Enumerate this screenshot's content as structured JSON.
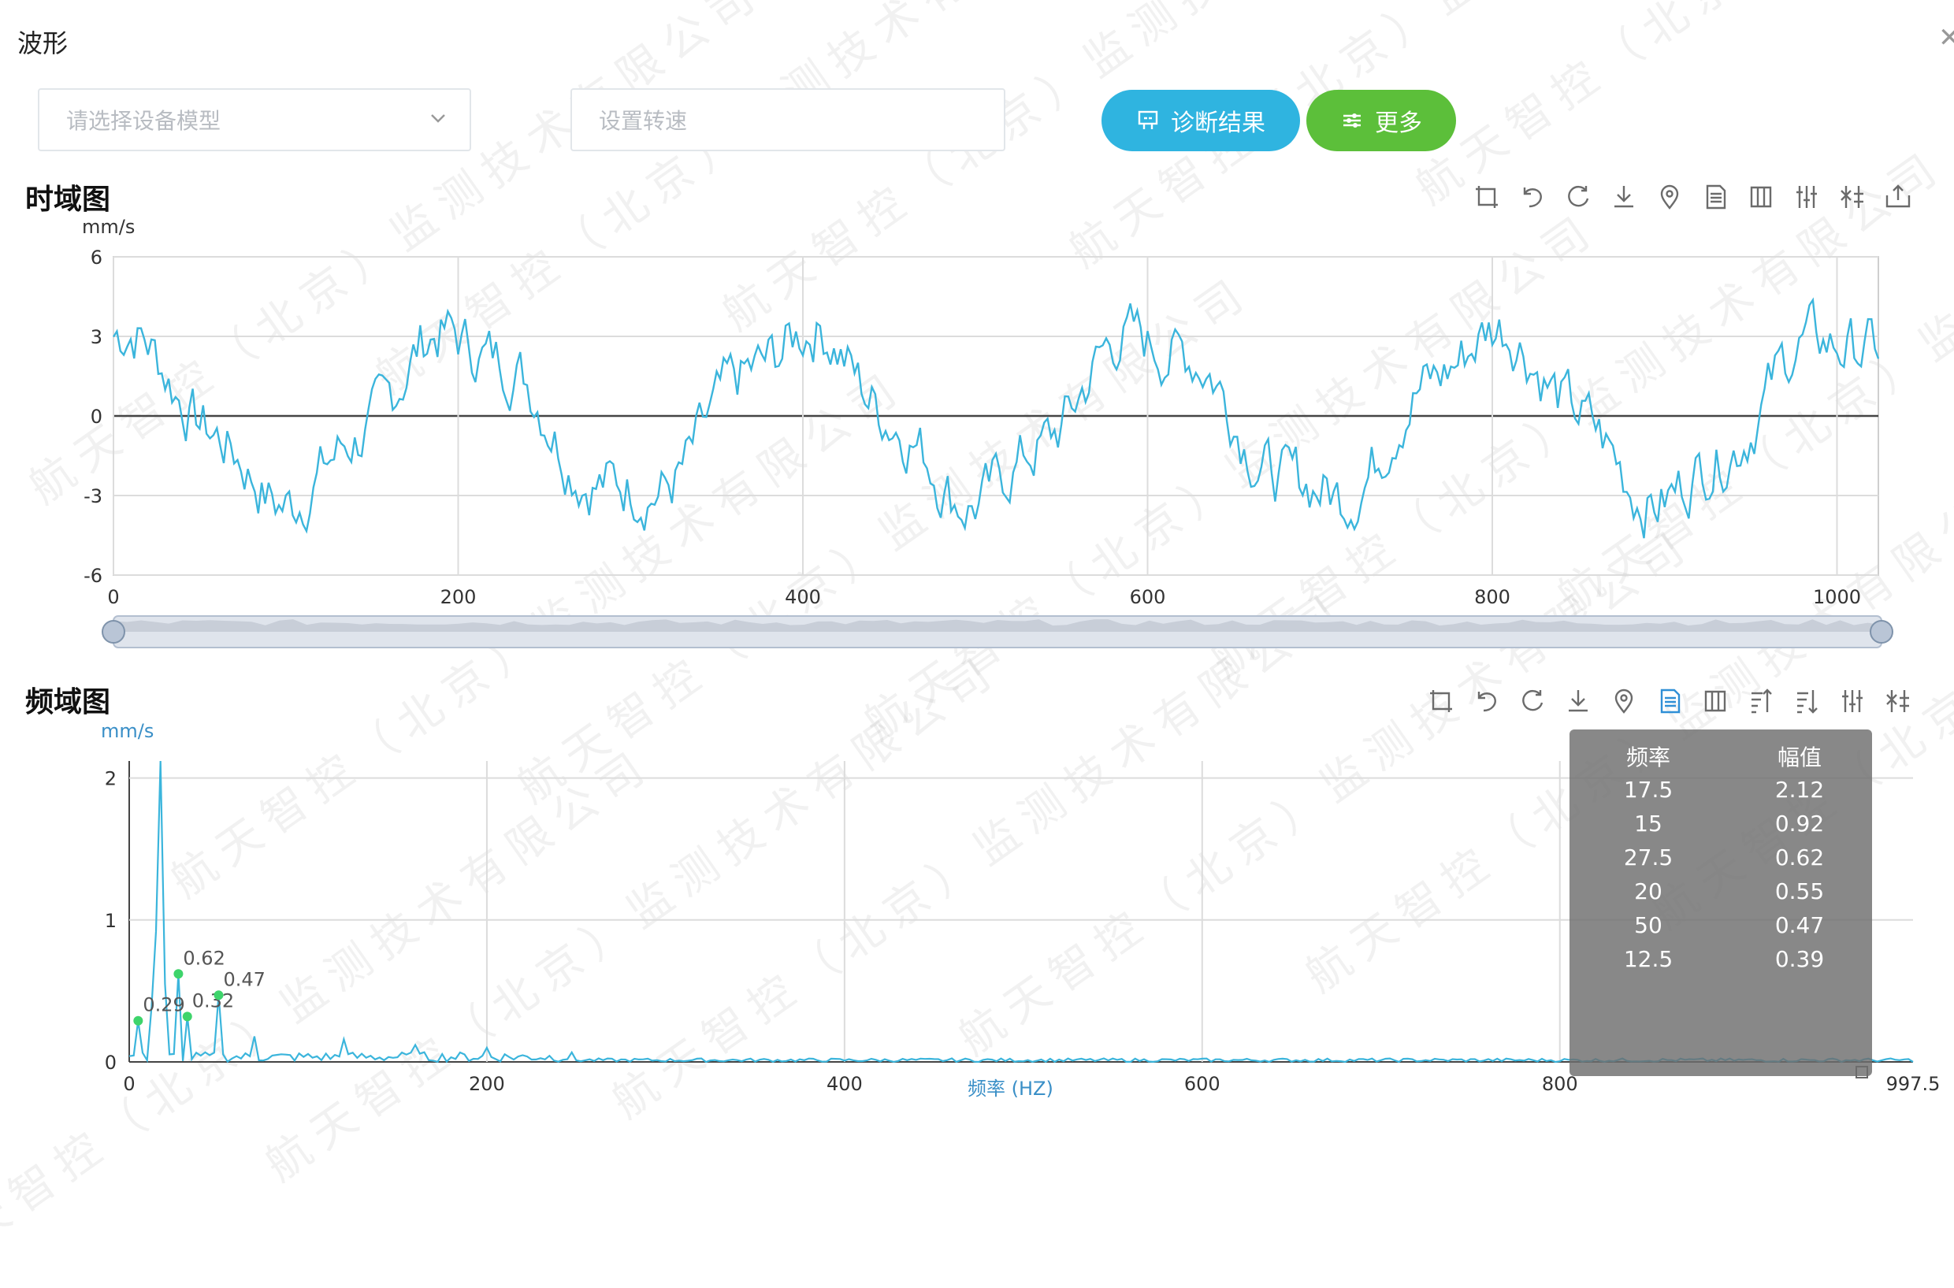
{
  "window": {
    "title": "波形",
    "close_icon": "close-icon"
  },
  "toolbar_form": {
    "model_placeholder": "请选择设备模型",
    "speed_placeholder": "设置转速",
    "diag_label": "诊断结果",
    "more_label": "更多"
  },
  "time_chart": {
    "title": "时域图",
    "y_unit": "mm/s",
    "tools": [
      "crop-icon",
      "undo-icon",
      "refresh-icon",
      "download-icon",
      "marker-icon",
      "data-view-icon",
      "columns-icon",
      "sliders-icon",
      "compare-icon",
      "export-icon"
    ]
  },
  "freq_chart": {
    "title": "频域图",
    "y_unit": "mm/s",
    "x_label": "频率 (HZ)",
    "tools": [
      "crop-icon",
      "undo-icon",
      "refresh-icon",
      "download-icon",
      "marker-icon",
      "data-view-icon",
      "columns-icon",
      "sort-asc-icon",
      "sort-desc-icon",
      "sliders-icon",
      "compare-icon"
    ]
  },
  "peak_table": {
    "headers": [
      "频率",
      "幅值"
    ],
    "rows": [
      [
        "17.5",
        "2.12"
      ],
      [
        "15",
        "0.92"
      ],
      [
        "27.5",
        "0.62"
      ],
      [
        "20",
        "0.55"
      ],
      [
        "50",
        "0.47"
      ],
      [
        "12.5",
        "0.39"
      ]
    ]
  },
  "watermark": "航天智控（北京）监测技术有限公司",
  "colors": {
    "line": "#3bb5dc",
    "green": "#3ed46b",
    "diag": "#2fb4e0",
    "more": "#5cbf3a"
  },
  "chart_data": [
    {
      "type": "line",
      "title": "时域图",
      "ylabel": "mm/s",
      "xlim": [
        0,
        1024
      ],
      "ylim": [
        -6,
        6
      ],
      "x_ticks": [
        0,
        200,
        400,
        600,
        800,
        1000
      ],
      "y_ticks": [
        -6,
        -3,
        0,
        3,
        6
      ],
      "description_values": {
        "period": 200,
        "amplitude": 3,
        "noise": 0.9
      },
      "grid": true
    },
    {
      "type": "line",
      "title": "频域图",
      "ylabel": "mm/s",
      "xlabel": "频率 (HZ)",
      "xlim": [
        0,
        997.5
      ],
      "ylim": [
        0,
        2.12
      ],
      "x_ticks": [
        0,
        200,
        400,
        600,
        800,
        997.5
      ],
      "y_ticks": [
        0,
        1,
        2
      ],
      "peaks": [
        {
          "x": 5,
          "y": 0.29,
          "label": "0.29"
        },
        {
          "x": 27.5,
          "y": 0.62,
          "label": "0.62"
        },
        {
          "x": 32.5,
          "y": 0.32,
          "label": "0.32"
        },
        {
          "x": 50,
          "y": 0.47,
          "label": "0.47"
        }
      ],
      "main_peak": {
        "x": 17.5,
        "y": 2.12
      },
      "grid": true
    }
  ]
}
